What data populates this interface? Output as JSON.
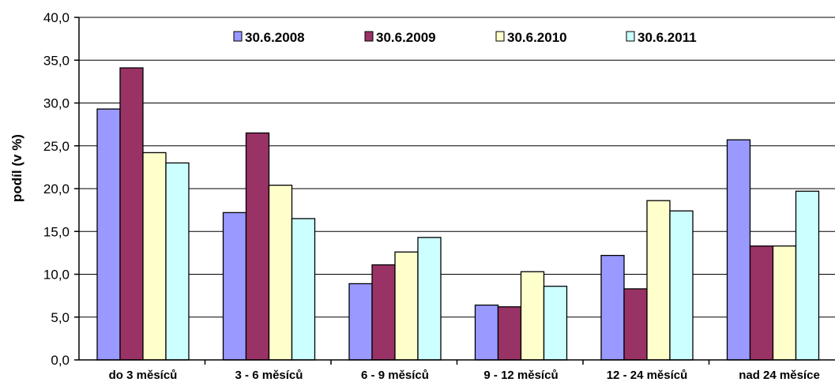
{
  "chart_data": {
    "type": "bar",
    "title": "",
    "xlabel": "",
    "ylabel": "podíl (v %)",
    "ylim": [
      0,
      40
    ],
    "ytick_labels": [
      "0,0",
      "5,0",
      "10,0",
      "15,0",
      "20,0",
      "25,0",
      "30,0",
      "35,0",
      "40,0"
    ],
    "categories": [
      "do 3 měsíců",
      "3 - 6 měsíců",
      "6 - 9 měsíců",
      "9 - 12 měsíců",
      "12 - 24 měsíců",
      "nad 24 měsíce"
    ],
    "series": [
      {
        "name": "30.6.2008",
        "color": "#9999ff",
        "values": [
          29.3,
          17.2,
          8.9,
          6.4,
          12.2,
          25.7
        ]
      },
      {
        "name": "30.6.2009",
        "color": "#993366",
        "values": [
          34.1,
          26.5,
          11.1,
          6.2,
          8.3,
          13.3
        ]
      },
      {
        "name": "30.6.2010",
        "color": "#ffffcc",
        "values": [
          24.2,
          20.4,
          12.6,
          10.3,
          18.6,
          13.3
        ]
      },
      {
        "name": "30.6.2011",
        "color": "#ccffff",
        "values": [
          23.0,
          16.5,
          14.3,
          8.6,
          17.4,
          19.7
        ]
      }
    ],
    "grid": true,
    "legend_position": "top"
  }
}
